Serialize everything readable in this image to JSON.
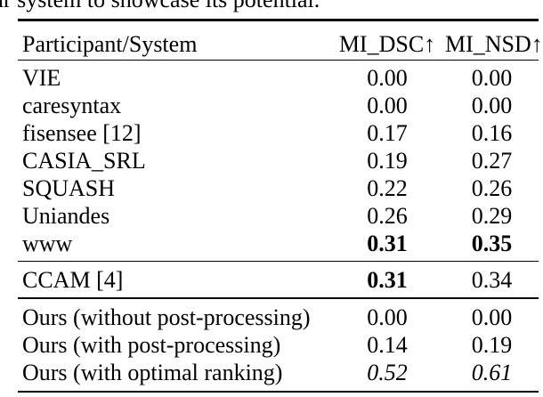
{
  "caption_fragment": "ur system to showcase its potential.",
  "table": {
    "columns": {
      "participant": "Participant/System",
      "mi_dsc": "MI_DSC↑",
      "mi_nsd": "MI_NSD↑"
    },
    "sections": [
      {
        "rows": [
          {
            "name": "VIE",
            "dsc": "0.00",
            "nsd": "0.00"
          },
          {
            "name": "caresyntax",
            "dsc": "0.00",
            "nsd": "0.00"
          },
          {
            "name": "fisensee [12]",
            "dsc": "0.17",
            "nsd": "0.16"
          },
          {
            "name": "CASIA_SRL",
            "dsc": "0.19",
            "nsd": "0.27"
          },
          {
            "name": "SQUASH",
            "dsc": "0.22",
            "nsd": "0.26"
          },
          {
            "name": "Uniandes",
            "dsc": "0.26",
            "nsd": "0.29"
          },
          {
            "name": "www",
            "dsc": "0.31",
            "nsd": "0.35"
          }
        ]
      },
      {
        "rows": [
          {
            "name": "CCAM [4]",
            "dsc": "0.31",
            "nsd": "0.34"
          }
        ]
      },
      {
        "rows": [
          {
            "name": "Ours (without post-processing)",
            "dsc": "0.00",
            "nsd": "0.00"
          },
          {
            "name": "Ours (with post-processing)",
            "dsc": "0.14",
            "nsd": "0.19"
          },
          {
            "name": "Ours (with optimal ranking)",
            "dsc": "0.52",
            "nsd": "0.61"
          }
        ]
      }
    ]
  },
  "colors": {
    "text": "#000000",
    "background": "#ffffff",
    "rule": "#000000"
  }
}
